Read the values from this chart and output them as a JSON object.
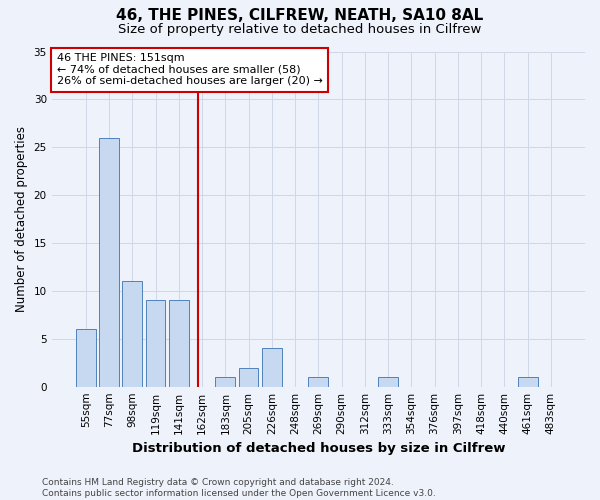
{
  "title": "46, THE PINES, CILFREW, NEATH, SA10 8AL",
  "subtitle": "Size of property relative to detached houses in Cilfrew",
  "xlabel": "Distribution of detached houses by size in Cilfrew",
  "ylabel": "Number of detached properties",
  "categories": [
    "55sqm",
    "77sqm",
    "98sqm",
    "119sqm",
    "141sqm",
    "162sqm",
    "183sqm",
    "205sqm",
    "226sqm",
    "248sqm",
    "269sqm",
    "290sqm",
    "312sqm",
    "333sqm",
    "354sqm",
    "376sqm",
    "397sqm",
    "418sqm",
    "440sqm",
    "461sqm",
    "483sqm"
  ],
  "values": [
    6,
    26,
    11,
    9,
    9,
    0,
    1,
    2,
    4,
    0,
    1,
    0,
    0,
    1,
    0,
    0,
    0,
    0,
    0,
    1,
    0
  ],
  "bar_color": "#c6d9f1",
  "bar_edgecolor": "#4f81bd",
  "grid_color": "#d0d8e8",
  "vline_x_index": 4.82,
  "vline_color": "#cc0000",
  "annotation_text": "46 THE PINES: 151sqm\n← 74% of detached houses are smaller (58)\n26% of semi-detached houses are larger (20) →",
  "annotation_box_edgecolor": "#cc0000",
  "annotation_box_facecolor": "#ffffff",
  "ylim": [
    0,
    35
  ],
  "yticks": [
    0,
    5,
    10,
    15,
    20,
    25,
    30,
    35
  ],
  "footer_text": "Contains HM Land Registry data © Crown copyright and database right 2024.\nContains public sector information licensed under the Open Government Licence v3.0.",
  "title_fontsize": 11,
  "subtitle_fontsize": 9.5,
  "xlabel_fontsize": 9.5,
  "ylabel_fontsize": 8.5,
  "tick_fontsize": 7.5,
  "annotation_fontsize": 8,
  "footer_fontsize": 6.5,
  "background_color": "#eef2fb"
}
